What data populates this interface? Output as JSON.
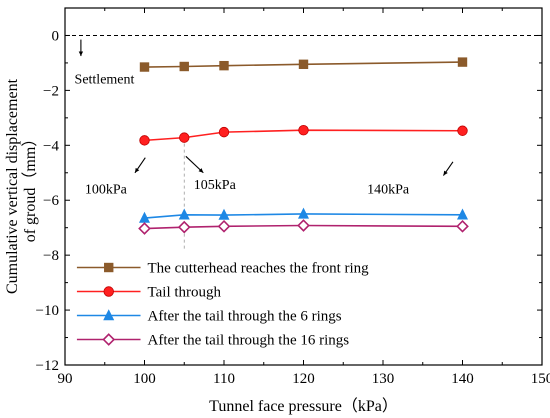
{
  "chart_data": {
    "type": "line",
    "xlabel": "Tunnel face pressure（kPa）",
    "ylabel_lines": [
      "Cumulative vertical displacement",
      "of groud（mm）"
    ],
    "xlim": [
      90,
      150
    ],
    "ylim": [
      -12,
      1
    ],
    "xticks": [
      90,
      100,
      110,
      120,
      130,
      140,
      150
    ],
    "yticks": [
      -12,
      -10,
      -8,
      -6,
      -4,
      -2,
      0
    ],
    "ytick_labels": [
      "−12",
      "−10",
      "−8",
      "−6",
      "−4",
      "−2",
      "0"
    ],
    "grid": false,
    "legend_position": "bottom-left",
    "x": [
      100,
      105,
      110,
      120,
      140
    ],
    "series": [
      {
        "name": "The cutterhead reaches the front ring",
        "values": [
          -1.15,
          -1.13,
          -1.1,
          -1.05,
          -0.97
        ],
        "color": "#8b5a2b",
        "marker": "square"
      },
      {
        "name": "Tail through",
        "values": [
          -3.82,
          -3.72,
          -3.52,
          -3.45,
          -3.47
        ],
        "color": "#ff2020",
        "marker": "circle"
      },
      {
        "name": "After the tail through the 6 rings",
        "values": [
          -6.65,
          -6.53,
          -6.54,
          -6.5,
          -6.53
        ],
        "color": "#1e88e5",
        "marker": "triangle"
      },
      {
        "name": "After the tail through the 16 rings",
        "values": [
          -7.03,
          -6.98,
          -6.95,
          -6.92,
          -6.95
        ],
        "color": "#b0226e",
        "marker": "diamond"
      }
    ],
    "annotations": {
      "settlement": "Settlement",
      "p100": "100kPa",
      "p105": "105kPa",
      "p140": "140kPa"
    },
    "zero_line_color": "#000000"
  }
}
